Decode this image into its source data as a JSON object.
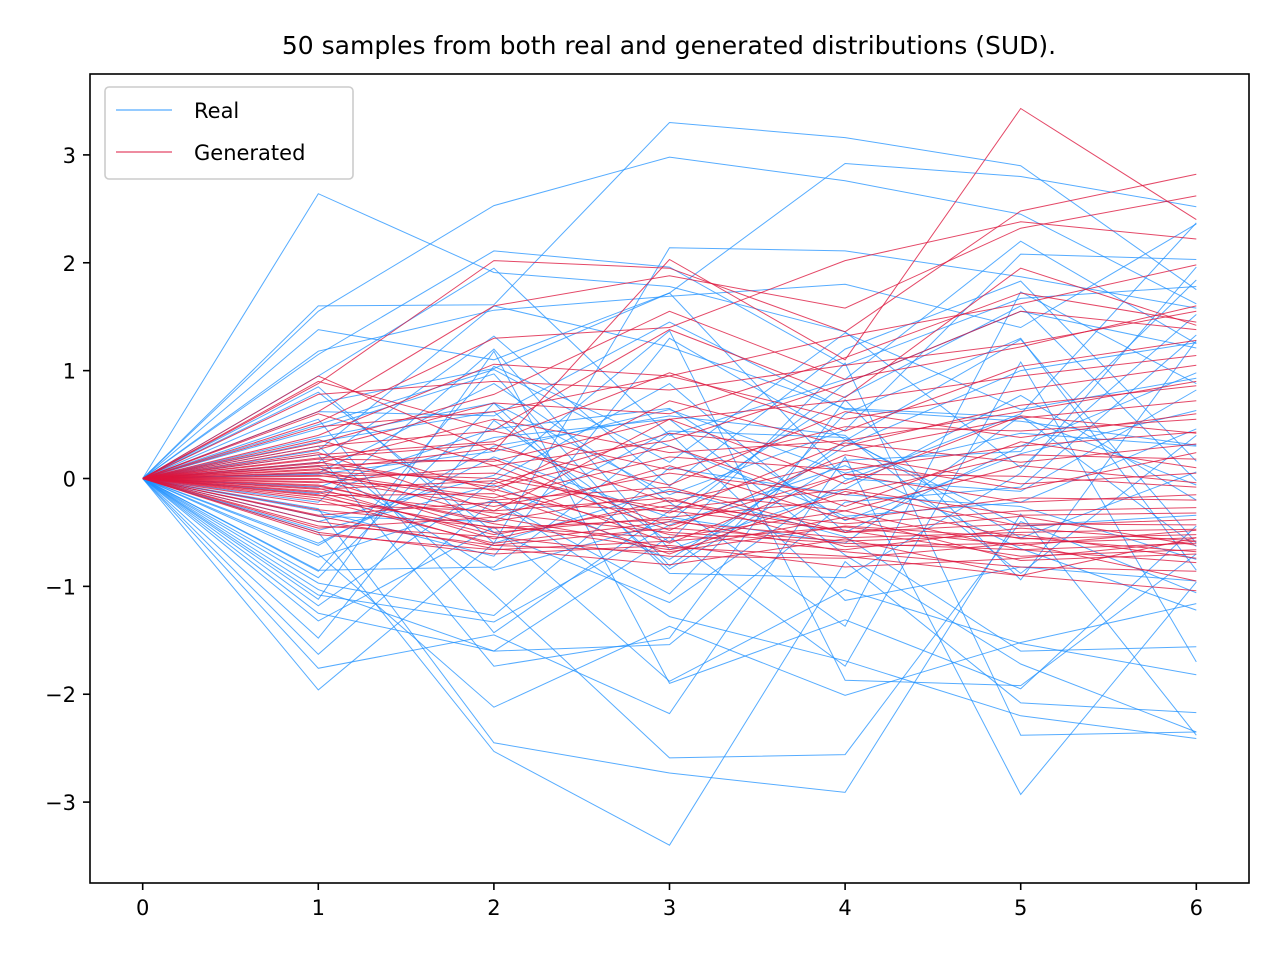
{
  "chart_data": {
    "type": "line",
    "title": "50 samples from both real and generated distributions (SUD).",
    "xlabel": "",
    "ylabel": "",
    "x": [
      0,
      1,
      2,
      3,
      4,
      5,
      6
    ],
    "xlim": [
      -0.3,
      6.3
    ],
    "ylim": [
      -3.75,
      3.75
    ],
    "x_ticks": [
      0,
      1,
      2,
      3,
      4,
      5,
      6
    ],
    "y_ticks": [
      -3,
      -2,
      -1,
      0,
      1,
      2,
      3
    ],
    "y_tick_labels": [
      "−3",
      "−2",
      "−1",
      "0",
      "1",
      "2",
      "3"
    ],
    "grid": false,
    "legend_position": "top-left",
    "series": [
      {
        "name": "Real",
        "color": "#1e90ff",
        "samples": [
          [
            0,
            2.64,
            1.91,
            1.78,
            1.36,
            0.1,
            1.52
          ],
          [
            0,
            1.6,
            1.61,
            3.3,
            3.16,
            2.9,
            1.75
          ],
          [
            0,
            1.55,
            2.53,
            2.98,
            2.76,
            2.45,
            1.62
          ],
          [
            0,
            1.38,
            1.1,
            1.72,
            2.92,
            2.8,
            2.52
          ],
          [
            0,
            1.18,
            1.56,
            1.69,
            1.8,
            1.4,
            2.36
          ],
          [
            0,
            1.15,
            2.11,
            1.96,
            1.05,
            1.67,
            1.78
          ],
          [
            0,
            0.95,
            1.95,
            0.4,
            0.92,
            2.2,
            1.25
          ],
          [
            0,
            0.85,
            -0.6,
            2.14,
            2.11,
            1.87,
            1.58
          ],
          [
            0,
            0.62,
            0.58,
            1.45,
            0.64,
            0.53,
            0.31
          ],
          [
            0,
            0.5,
            1.01,
            0.15,
            1.35,
            0.64,
            0.93
          ],
          [
            0,
            0.38,
            0.7,
            -0.15,
            0.45,
            2.08,
            2.03
          ],
          [
            0,
            0.26,
            1.6,
            1.22,
            0.65,
            0.57,
            -0.06
          ],
          [
            0,
            0.12,
            -0.85,
            -0.4,
            0.88,
            1.55,
            1.21
          ],
          [
            0,
            0.04,
            0.25,
            0.64,
            0.05,
            0.42,
            0.3
          ],
          [
            0,
            -0.08,
            0.46,
            0.65,
            -0.39,
            0.23,
            0.63
          ],
          [
            0,
            -0.22,
            1.2,
            -0.66,
            -0.1,
            0.77,
            -0.2
          ],
          [
            0,
            -0.35,
            -0.4,
            0.44,
            0.38,
            -0.55,
            0.06
          ],
          [
            0,
            -0.48,
            -0.06,
            -0.75,
            0.3,
            1.0,
            1.26
          ],
          [
            0,
            -0.6,
            0.2,
            -0.36,
            -0.6,
            0.58,
            -0.63
          ],
          [
            0,
            -0.73,
            -0.2,
            -1.07,
            0.6,
            1.3,
            -0.85
          ],
          [
            0,
            -0.85,
            -0.82,
            0.42,
            -1.13,
            -0.82,
            -0.95
          ],
          [
            0,
            -0.92,
            0.7,
            -0.88,
            -0.92,
            0.05,
            1.96
          ],
          [
            0,
            -0.97,
            -1.27,
            0.1,
            -0.15,
            -0.26,
            -0.75
          ],
          [
            0,
            -1.03,
            -1.6,
            -0.54,
            -1.74,
            1.08,
            -1.7
          ],
          [
            0,
            -1.08,
            -1.33,
            -0.43,
            0.12,
            -0.65,
            -1.22
          ],
          [
            0,
            -1.12,
            1.18,
            -1.9,
            -1.31,
            -1.95,
            -0.44
          ],
          [
            0,
            -1.25,
            -1.6,
            -1.54,
            -0.22,
            -0.08,
            1.33
          ],
          [
            0,
            -1.32,
            -0.45,
            -1.88,
            -1.03,
            -1.53,
            -1.82
          ],
          [
            0,
            -1.48,
            0.54,
            -0.59,
            1.07,
            -2.38,
            -2.35
          ],
          [
            0,
            -1.63,
            -0.2,
            -1.28,
            -1.69,
            -2.2,
            -2.41
          ],
          [
            0,
            -1.76,
            -1.45,
            -2.18,
            0.2,
            -2.93,
            -0.96
          ],
          [
            0,
            -1.96,
            -0.6,
            -0.1,
            -0.54,
            -1.6,
            -1.56
          ],
          [
            0,
            -0.5,
            -2.53,
            -3.4,
            -0.77,
            -2.08,
            -2.17
          ],
          [
            0,
            -0.28,
            -2.45,
            -2.73,
            -2.91,
            -0.33,
            -2.38
          ],
          [
            0,
            -0.7,
            -2.12,
            -1.37,
            -2.01,
            -1.52,
            -1.16
          ],
          [
            0,
            0.3,
            -1.07,
            -2.59,
            -2.56,
            -0.4,
            -1.06
          ],
          [
            0,
            0.46,
            0.97,
            -0.81,
            0.35,
            1.29,
            -0.6
          ],
          [
            0,
            -0.14,
            0.38,
            0.55,
            -0.71,
            -1.72,
            -2.35
          ],
          [
            0,
            0.22,
            -1.74,
            -1.48,
            0.73,
            -0.94,
            1.28
          ],
          [
            0,
            0.7,
            1.02,
            1.72,
            0.0,
            -0.12,
            0.82
          ],
          [
            0,
            -0.4,
            0.03,
            1.37,
            -1.87,
            -1.92,
            -0.7
          ],
          [
            0,
            0.8,
            -0.5,
            -1.15,
            -0.02,
            0.6,
            2.37
          ],
          [
            0,
            0.15,
            1.32,
            -0.07,
            1.2,
            1.83,
            0.16
          ],
          [
            0,
            -0.86,
            1.04,
            0.3,
            -0.35,
            -0.22,
            0.46
          ],
          [
            0,
            0.55,
            -1.43,
            -0.3,
            0.76,
            1.6,
            -0.02
          ],
          [
            0,
            -0.62,
            0.3,
            0.58,
            0.4,
            -0.88,
            0.4
          ],
          [
            0,
            0.34,
            0.62,
            -0.84,
            0.17,
            0.25,
            1.84
          ],
          [
            0,
            -0.3,
            -0.72,
            1.3,
            0.36,
            -0.44,
            -0.34
          ],
          [
            0,
            0.05,
            0.88,
            -0.22,
            -1.37,
            1.73,
            0.88
          ],
          [
            0,
            -1.18,
            -0.02,
            0.88,
            -0.5,
            0.3,
            0.98
          ]
        ]
      },
      {
        "name": "Generated",
        "color": "#dc143c",
        "samples": [
          [
            0,
            0.95,
            0.25,
            2.03,
            1.1,
            3.43,
            2.4
          ],
          [
            0,
            0.88,
            2.02,
            1.95,
            1.36,
            2.48,
            2.82
          ],
          [
            0,
            0.62,
            1.6,
            1.88,
            1.58,
            2.32,
            2.62
          ],
          [
            0,
            0.52,
            1.3,
            1.4,
            2.02,
            2.38,
            2.22
          ],
          [
            0,
            0.4,
            1.06,
            0.95,
            1.32,
            1.62,
            1.98
          ],
          [
            0,
            0.33,
            0.78,
            1.55,
            0.92,
            1.22,
            1.6
          ],
          [
            0,
            0.27,
            0.7,
            0.6,
            1.12,
            1.72,
            1.45
          ],
          [
            0,
            0.22,
            0.34,
            0.98,
            0.44,
            1.04,
            1.28
          ],
          [
            0,
            0.18,
            0.16,
            0.55,
            0.72,
            0.95,
            1.14
          ],
          [
            0,
            0.14,
            0.55,
            0.24,
            0.35,
            0.62,
            0.9
          ],
          [
            0,
            0.11,
            -0.05,
            0.42,
            0.25,
            0.56,
            0.72
          ],
          [
            0,
            0.08,
            0.28,
            -0.06,
            0.62,
            0.38,
            0.6
          ],
          [
            0,
            0.05,
            -0.18,
            0.2,
            0.08,
            0.3,
            0.43
          ],
          [
            0,
            0.02,
            0.05,
            -0.32,
            0.33,
            0.15,
            0.32
          ],
          [
            0,
            -0.01,
            -0.26,
            0.05,
            -0.15,
            0.22,
            0.18
          ],
          [
            0,
            -0.04,
            0.12,
            -0.48,
            0.22,
            -0.05,
            0.05
          ],
          [
            0,
            -0.07,
            -0.4,
            -0.12,
            -0.3,
            0.12,
            -0.04
          ],
          [
            0,
            -0.1,
            -0.02,
            -0.6,
            0.04,
            -0.22,
            -0.15
          ],
          [
            0,
            -0.13,
            -0.52,
            -0.25,
            -0.42,
            -0.3,
            -0.27
          ],
          [
            0,
            -0.16,
            -0.14,
            -0.7,
            -0.12,
            -0.44,
            -0.38
          ],
          [
            0,
            -0.2,
            -0.6,
            -0.4,
            -0.55,
            -0.5,
            -0.47
          ],
          [
            0,
            -0.24,
            -0.3,
            -0.18,
            -0.63,
            -0.6,
            -0.55
          ],
          [
            0,
            -0.29,
            -0.45,
            -0.55,
            -0.3,
            -0.66,
            -0.6
          ],
          [
            0,
            -0.34,
            -0.22,
            -0.3,
            -0.48,
            -0.72,
            -0.66
          ],
          [
            0,
            -0.4,
            -0.62,
            -0.46,
            -0.58,
            -0.52,
            -0.74
          ],
          [
            0,
            -0.46,
            -0.36,
            -0.64,
            -0.72,
            -0.9,
            -0.55
          ],
          [
            0,
            -0.52,
            -0.66,
            -0.58,
            -0.45,
            -0.62,
            -0.48
          ],
          [
            0,
            0.9,
            0.45,
            1.38,
            0.75,
            1.95,
            1.42
          ],
          [
            0,
            0.78,
            0.9,
            0.82,
            1.05,
            1.25,
            1.55
          ],
          [
            0,
            0.6,
            0.12,
            0.35,
            0.88,
            1.55,
            1.38
          ],
          [
            0,
            0.48,
            0.62,
            0.95,
            0.55,
            0.82,
            1.05
          ],
          [
            0,
            0.36,
            -0.12,
            0.72,
            0.3,
            0.68,
            0.86
          ],
          [
            0,
            0.3,
            0.44,
            0.08,
            0.48,
            0.44,
            0.55
          ],
          [
            0,
            0.24,
            -0.3,
            0.55,
            -0.05,
            0.58,
            0.42
          ],
          [
            0,
            0.19,
            0.32,
            -0.22,
            0.16,
            -0.1,
            0.24
          ],
          [
            0,
            0.15,
            -0.08,
            0.3,
            -0.26,
            0.34,
            0.1
          ],
          [
            0,
            0.12,
            0.18,
            -0.44,
            0.04,
            0.02,
            -0.08
          ],
          [
            0,
            0.09,
            -0.36,
            0.12,
            -0.38,
            -0.18,
            -0.2
          ],
          [
            0,
            0.06,
            0.0,
            -0.28,
            -0.1,
            -0.34,
            -0.32
          ],
          [
            0,
            0.03,
            -0.2,
            -0.08,
            -0.5,
            -0.42,
            -0.43
          ],
          [
            0,
            0.0,
            -0.5,
            -0.36,
            -0.2,
            -0.56,
            -0.52
          ],
          [
            0,
            -0.03,
            -0.1,
            -0.52,
            -0.66,
            -0.46,
            -0.58
          ],
          [
            0,
            -0.06,
            -0.42,
            -0.66,
            -0.36,
            -0.76,
            -0.7
          ],
          [
            0,
            -0.09,
            -0.56,
            -0.2,
            -0.5,
            -0.35,
            -0.62
          ],
          [
            0,
            -0.12,
            -0.32,
            -0.5,
            -0.6,
            -0.66,
            -0.78
          ],
          [
            0,
            -0.15,
            -0.62,
            -0.68,
            -0.44,
            -0.55,
            -0.68
          ],
          [
            0,
            -0.18,
            -0.46,
            -0.38,
            -0.68,
            -0.82,
            -0.86
          ],
          [
            0,
            -0.35,
            -0.65,
            -0.8,
            -0.56,
            -0.9,
            -1.04
          ],
          [
            0,
            -0.44,
            -0.54,
            -0.72,
            -0.74,
            -0.6,
            -0.95
          ],
          [
            0,
            -0.5,
            -0.7,
            -0.62,
            -0.82,
            -0.74,
            -0.58
          ]
        ]
      }
    ]
  }
}
